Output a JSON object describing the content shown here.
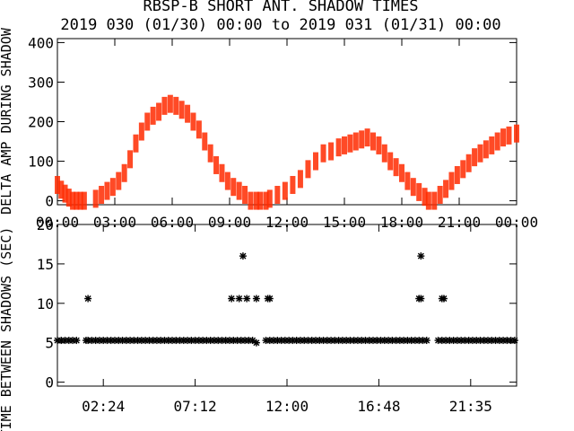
{
  "title_line1": "RBSP-B SHORT ANT. SHADOW TIMES",
  "title_line2": "2019 030 (01/30) 00:00 to 2019 031 (01/31) 00:00",
  "colors": {
    "top_series": "#ff2a00",
    "bottom_series": "#000000",
    "axis": "#000000"
  },
  "chart_data": [
    {
      "type": "scatter",
      "ylabel": "DELTA AMP DURING SHADOW",
      "ylim": [
        -10,
        410
      ],
      "yticks": [
        "0",
        "100",
        "200",
        "300",
        "400"
      ],
      "ytick_values": [
        0,
        100,
        200,
        300,
        400
      ],
      "xlim": [
        0,
        24
      ],
      "xticks": [
        "00:00",
        "03:00",
        "06:00",
        "09:00",
        "12:00",
        "15:00",
        "18:00",
        "21:00",
        "00:00"
      ],
      "xtick_values": [
        0,
        3,
        6,
        9,
        12,
        15,
        18,
        21,
        24
      ],
      "series": [
        {
          "values_note_x_hours_y_amp": true,
          "x": [
            0.0,
            0.2,
            0.4,
            0.6,
            0.8,
            1.0,
            1.2,
            1.4,
            2.0,
            2.3,
            2.6,
            2.9,
            3.2,
            3.5,
            3.8,
            4.1,
            4.4,
            4.7,
            5.0,
            5.3,
            5.6,
            5.9,
            6.2,
            6.5,
            6.8,
            7.1,
            7.4,
            7.7,
            8.0,
            8.3,
            8.6,
            8.9,
            9.2,
            9.5,
            9.8,
            10.1,
            10.4,
            10.6,
            10.9,
            11.1,
            11.5,
            11.9,
            12.3,
            12.7,
            13.1,
            13.5,
            13.9,
            14.3,
            14.7,
            15.0,
            15.3,
            15.6,
            15.9,
            16.2,
            16.5,
            16.8,
            17.1,
            17.4,
            17.7,
            18.0,
            18.3,
            18.6,
            18.9,
            19.2,
            19.4,
            19.7,
            20.0,
            20.3,
            20.6,
            20.9,
            21.2,
            21.5,
            21.8,
            22.1,
            22.4,
            22.7,
            23.0,
            23.3,
            23.6,
            24.0
          ],
          "y": [
            40,
            28,
            18,
            8,
            0,
            0,
            0,
            0,
            5,
            15,
            25,
            35,
            50,
            70,
            105,
            145,
            175,
            200,
            215,
            225,
            240,
            245,
            240,
            230,
            220,
            200,
            180,
            150,
            120,
            90,
            70,
            50,
            35,
            25,
            15,
            0,
            0,
            0,
            0,
            5,
            15,
            25,
            40,
            55,
            80,
            100,
            120,
            125,
            135,
            140,
            145,
            150,
            155,
            160,
            150,
            140,
            120,
            100,
            85,
            70,
            50,
            35,
            22,
            10,
            0,
            0,
            15,
            30,
            50,
            65,
            80,
            95,
            110,
            120,
            130,
            140,
            150,
            160,
            165,
            170
          ]
        }
      ]
    },
    {
      "type": "scatter",
      "ylabel": "TIME BETWEEN SHADOWS (SEC)",
      "ylim": [
        -0.5,
        20
      ],
      "yticks": [
        "0",
        "5",
        "10",
        "15",
        "20"
      ],
      "ytick_values": [
        0,
        5,
        10,
        15,
        20
      ],
      "xlim": [
        0,
        24
      ],
      "xticks": [
        "02:24",
        "07:12",
        "12:00",
        "16:48",
        "21:35"
      ],
      "xtick_values": [
        2.4,
        7.2,
        12.0,
        16.8,
        21.6
      ],
      "series": [
        {
          "x": [
            0.0,
            0.2,
            0.4,
            0.6,
            0.8,
            1.0,
            1.5,
            1.6,
            1.8,
            2.0,
            2.2,
            2.4,
            2.6,
            2.8,
            3.0,
            3.2,
            3.4,
            3.6,
            3.8,
            4.0,
            4.2,
            4.4,
            4.6,
            4.8,
            5.0,
            5.2,
            5.4,
            5.6,
            5.8,
            6.0,
            6.2,
            6.4,
            6.6,
            6.8,
            7.0,
            7.2,
            7.4,
            7.6,
            7.8,
            8.0,
            8.2,
            8.4,
            8.6,
            8.8,
            9.0,
            9.2,
            9.4,
            9.6,
            9.8,
            10.0,
            10.2,
            10.4,
            10.9,
            11.1,
            11.3,
            11.5,
            11.7,
            11.9,
            12.1,
            12.3,
            12.5,
            12.7,
            12.9,
            13.1,
            13.3,
            13.5,
            13.7,
            13.9,
            14.1,
            14.3,
            14.5,
            14.7,
            14.9,
            15.1,
            15.3,
            15.5,
            15.7,
            15.9,
            16.1,
            16.3,
            16.5,
            16.7,
            16.9,
            17.1,
            17.3,
            17.5,
            17.7,
            17.9,
            18.1,
            18.3,
            18.5,
            18.7,
            18.9,
            19.1,
            19.3,
            19.9,
            20.1,
            20.3,
            20.5,
            20.7,
            20.9,
            21.1,
            21.3,
            21.5,
            21.7,
            21.9,
            22.1,
            22.3,
            22.5,
            22.7,
            22.9,
            23.1,
            23.3,
            23.5,
            23.7,
            23.9,
            1.6,
            9.1,
            9.5,
            9.9,
            10.4,
            11.0,
            11.1,
            18.9,
            19.0,
            20.1,
            20.2,
            9.7,
            19.0
          ],
          "y": [
            5.3,
            5.3,
            5.3,
            5.3,
            5.3,
            5.3,
            5.3,
            5.3,
            5.3,
            5.3,
            5.3,
            5.3,
            5.3,
            5.3,
            5.3,
            5.3,
            5.3,
            5.3,
            5.3,
            5.3,
            5.3,
            5.3,
            5.3,
            5.3,
            5.3,
            5.3,
            5.3,
            5.3,
            5.3,
            5.3,
            5.3,
            5.3,
            5.3,
            5.3,
            5.3,
            5.3,
            5.3,
            5.3,
            5.3,
            5.3,
            5.3,
            5.3,
            5.3,
            5.3,
            5.3,
            5.3,
            5.3,
            5.3,
            5.3,
            5.3,
            5.3,
            5.0,
            5.3,
            5.3,
            5.3,
            5.3,
            5.3,
            5.3,
            5.3,
            5.3,
            5.3,
            5.3,
            5.3,
            5.3,
            5.3,
            5.3,
            5.3,
            5.3,
            5.3,
            5.3,
            5.3,
            5.3,
            5.3,
            5.3,
            5.3,
            5.3,
            5.3,
            5.3,
            5.3,
            5.3,
            5.3,
            5.3,
            5.3,
            5.3,
            5.3,
            5.3,
            5.3,
            5.3,
            5.3,
            5.3,
            5.3,
            5.3,
            5.3,
            5.3,
            5.3,
            5.3,
            5.3,
            5.3,
            5.3,
            5.3,
            5.3,
            5.3,
            5.3,
            5.3,
            5.3,
            5.3,
            5.3,
            5.3,
            5.3,
            5.3,
            5.3,
            5.3,
            5.3,
            5.3,
            5.3,
            5.3,
            10.6,
            10.6,
            10.6,
            10.6,
            10.6,
            10.6,
            10.6,
            10.6,
            10.6,
            10.6,
            10.6,
            16.0,
            16.0
          ]
        }
      ]
    }
  ]
}
